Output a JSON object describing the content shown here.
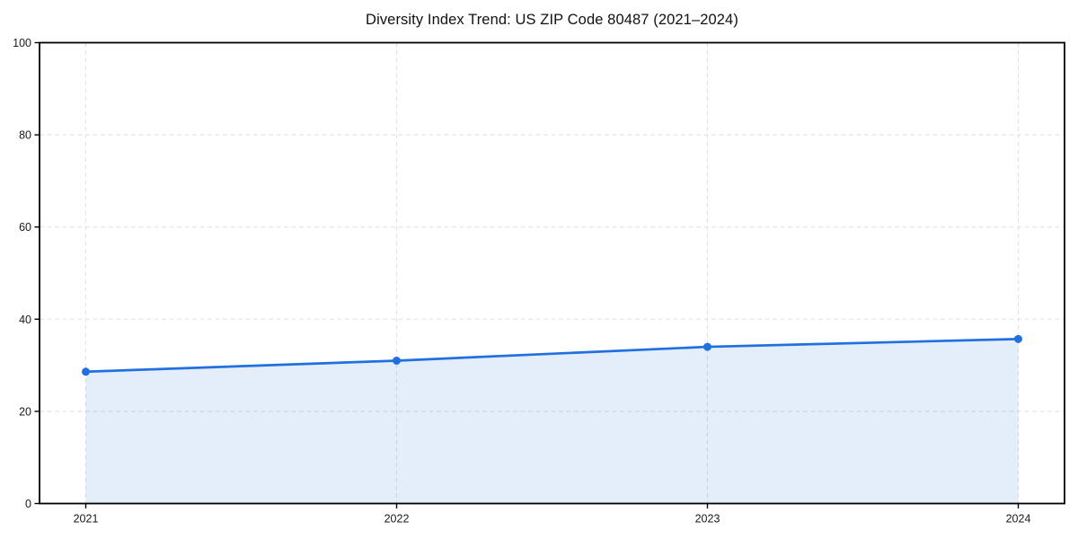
{
  "chart": {
    "title": "Diversity Index Trend: US ZIP Code 80487 (2021–2024)"
  },
  "chart_data": {
    "type": "line",
    "title": "Diversity Index Trend: US ZIP Code 80487 (2021–2024)",
    "x": [
      "2021",
      "2022",
      "2023",
      "2024"
    ],
    "series": [
      {
        "name": "Diversity Index",
        "values": [
          28.6,
          31.0,
          34.0,
          35.7
        ]
      }
    ],
    "xlabel": "",
    "ylabel": "",
    "ylim": [
      0,
      100
    ],
    "yticks": [
      0,
      20,
      40,
      60,
      80,
      100
    ],
    "grid": "dashed, horizontal and vertical at tick positions",
    "legend": "none",
    "area_fill": true,
    "marker": "circle",
    "colors": {
      "line": "#2070E0",
      "marker": "#2070E0",
      "fill": "#2070E0",
      "fill_opacity": 0.12,
      "grid": "#E3E3E3",
      "axis": "#000000",
      "text": "#1A1A1A",
      "background": "#FFFFFF"
    }
  }
}
